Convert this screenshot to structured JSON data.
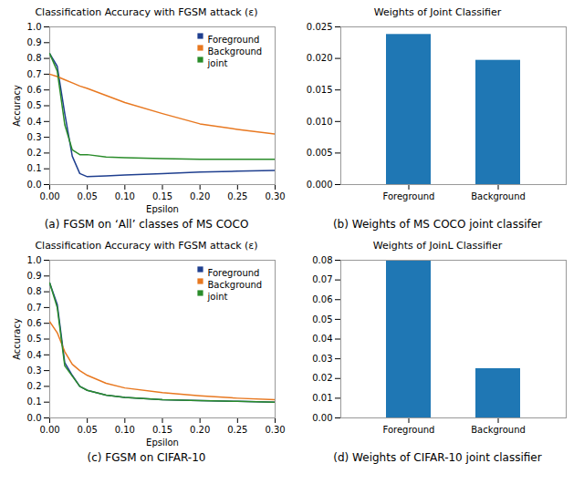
{
  "chart_data": [
    {
      "type": "line",
      "title": "Classification Accuracy with FGSM attack (ε)",
      "xlabel": "Epsilon",
      "ylabel": "Accuracy",
      "caption": "(a) FGSM on ‘All’ classes of MS COCO",
      "x": [
        0.0,
        0.01,
        0.02,
        0.03,
        0.04,
        0.05,
        0.075,
        0.1,
        0.15,
        0.2,
        0.25,
        0.3
      ],
      "series": [
        {
          "name": "Foreground",
          "color": "#1f3f8f",
          "values": [
            0.83,
            0.75,
            0.45,
            0.18,
            0.07,
            0.05,
            0.055,
            0.06,
            0.07,
            0.08,
            0.085,
            0.09
          ]
        },
        {
          "name": "Background",
          "color": "#e87820",
          "values": [
            0.7,
            0.685,
            0.665,
            0.645,
            0.625,
            0.61,
            0.565,
            0.52,
            0.45,
            0.385,
            0.35,
            0.32
          ]
        },
        {
          "name": "joint",
          "color": "#2a8c2a",
          "values": [
            0.83,
            0.72,
            0.38,
            0.22,
            0.19,
            0.19,
            0.175,
            0.17,
            0.165,
            0.16,
            0.16,
            0.16
          ]
        }
      ],
      "xlim": [
        0,
        0.3
      ],
      "ylim": [
        0,
        1.0
      ],
      "xticks": [
        {
          "value": 0,
          "label": "0.00"
        },
        0.05,
        {
          "value": 0.1,
          "label": "0.10"
        },
        0.15,
        {
          "value": 0.2,
          "label": "0.20"
        },
        0.25,
        {
          "value": 0.3,
          "label": "0.30"
        }
      ],
      "yticks": [
        {
          "value": 0,
          "label": "0.0"
        },
        0.1,
        0.2,
        0.3,
        0.4,
        0.5,
        0.6,
        0.7,
        0.8,
        0.9,
        {
          "value": 1,
          "label": "1.0"
        }
      ],
      "legend": "upper right"
    },
    {
      "type": "bar",
      "title": "Weights of Joint Classifier",
      "caption": "(b) Weights of MS COCO joint classifer",
      "categories": [
        "Foreground",
        "Background"
      ],
      "values": [
        0.0238,
        0.0197
      ],
      "color": "#1f77b4",
      "ylim": [
        0,
        0.025
      ],
      "yticks": [
        {
          "value": 0,
          "label": "0.000"
        },
        0.005,
        {
          "value": 0.01,
          "label": "0.010"
        },
        0.015,
        {
          "value": 0.02,
          "label": "0.020"
        },
        0.025
      ]
    },
    {
      "type": "line",
      "title": "Classification Accuracy with FGSM attack (ε)",
      "xlabel": "Epsilon",
      "ylabel": "Accuracy",
      "caption": "(c) FGSM on CIFAR-10",
      "x": [
        0.0,
        0.01,
        0.02,
        0.03,
        0.04,
        0.05,
        0.075,
        0.1,
        0.15,
        0.2,
        0.25,
        0.3
      ],
      "series": [
        {
          "name": "Foreground",
          "color": "#1f3f8f",
          "values": [
            0.855,
            0.72,
            0.35,
            0.27,
            0.2,
            0.175,
            0.145,
            0.13,
            0.115,
            0.11,
            0.105,
            0.1
          ]
        },
        {
          "name": "Background",
          "color": "#e87820",
          "values": [
            0.61,
            0.54,
            0.42,
            0.34,
            0.3,
            0.27,
            0.22,
            0.19,
            0.16,
            0.14,
            0.125,
            0.115
          ]
        },
        {
          "name": "joint",
          "color": "#2a8c2a",
          "values": [
            0.855,
            0.7,
            0.33,
            0.265,
            0.2,
            0.175,
            0.145,
            0.13,
            0.115,
            0.11,
            0.105,
            0.1
          ]
        }
      ],
      "xlim": [
        0,
        0.3
      ],
      "ylim": [
        0,
        1.0
      ],
      "xticks": [
        {
          "value": 0,
          "label": "0.00"
        },
        0.05,
        {
          "value": 0.1,
          "label": "0.10"
        },
        0.15,
        {
          "value": 0.2,
          "label": "0.20"
        },
        0.25,
        {
          "value": 0.3,
          "label": "0.30"
        }
      ],
      "yticks": [
        {
          "value": 0,
          "label": "0.0"
        },
        0.1,
        0.2,
        0.3,
        0.4,
        0.5,
        0.6,
        0.7,
        0.8,
        0.9,
        {
          "value": 1,
          "label": "1.0"
        }
      ],
      "legend": "upper right"
    },
    {
      "type": "bar",
      "title": "Weights of JoinL Classifier",
      "caption": "(d) Weights of CIFAR-10 joint classifier",
      "categories": [
        "Foreground",
        "Background"
      ],
      "values": [
        0.08,
        0.025
      ],
      "color": "#1f77b4",
      "ylim": [
        0,
        0.08
      ],
      "yticks": [
        {
          "value": 0,
          "label": "0.00"
        },
        0.01,
        0.02,
        0.03,
        0.04,
        0.05,
        0.06,
        0.07,
        0.08
      ]
    }
  ]
}
